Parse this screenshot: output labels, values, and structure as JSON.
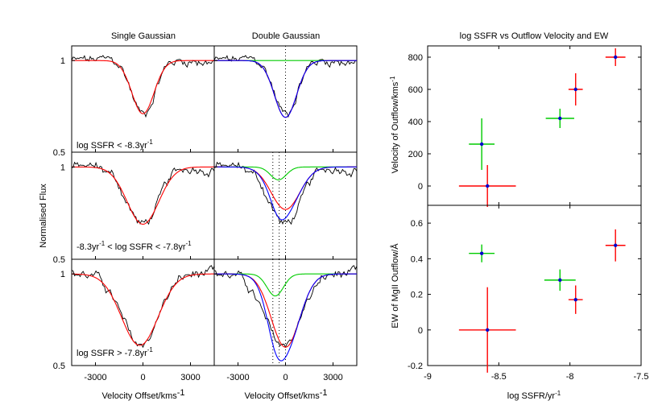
{
  "chart_data": [
    {
      "type": "line",
      "panel": "spectra",
      "column_titles": [
        "Single Gaussian",
        "Double Gaussian"
      ],
      "ylabel": "Normalised Flux",
      "xlabel": {
        "base": "Velocity Offset/kms",
        "sup": "-1"
      },
      "x_ticks": [
        "-3000",
        "0",
        "3000"
      ],
      "xlim": [
        -4500,
        4500
      ],
      "ylim": [
        0.5,
        1.08
      ],
      "y_ticks": [
        "1",
        "0.5"
      ],
      "dotted_lines_x": {
        "row1": [
          0
        ],
        "row2": [
          -800,
          -400,
          0
        ],
        "row3": [
          -800,
          -400,
          0
        ]
      },
      "colors": {
        "data": "#000000",
        "single_fit": "#ff0000",
        "broad": "#ff0000",
        "narrow": "#00cc00",
        "total": "#0000ff"
      },
      "rows": [
        {
          "label": {
            "a": "log SSFR < -8.3yr",
            "sup": "-1",
            "b": ""
          },
          "single_fit": {
            "center": 0,
            "depth": 0.29,
            "sigma": 700
          },
          "double_fit": {
            "narrow": {
              "center": -50,
              "depth": 0.0,
              "sigma": 450
            },
            "broad": {
              "center": 0,
              "depth": 0.31,
              "sigma": 700
            }
          }
        },
        {
          "label": {
            "a": "-8.3yr",
            "sup": "-1",
            "b": " < log SSFR < -7.8yr"
          },
          "label_sup2": "-1",
          "single_fit": {
            "center": 0,
            "depth": 0.31,
            "sigma": 1000
          },
          "double_fit": {
            "narrow": {
              "center": -450,
              "depth": 0.07,
              "sigma": 500
            },
            "broad": {
              "center": 0,
              "depth": 0.23,
              "sigma": 900
            }
          }
        },
        {
          "label": {
            "a": "log SSFR > -7.8yr",
            "sup": "-1",
            "b": ""
          },
          "single_fit": {
            "center": -200,
            "depth": 0.39,
            "sigma": 1150
          },
          "double_fit": {
            "narrow": {
              "center": -650,
              "depth": 0.12,
              "sigma": 520
            },
            "broad": {
              "center": 0,
              "depth": 0.4,
              "sigma": 900
            }
          }
        }
      ]
    },
    {
      "type": "scatter",
      "title": "log SSFR vs Outflow Velocity and EW",
      "xlabel": {
        "base": "log SSFR/yr",
        "sup": "-1"
      },
      "xlim": [
        -9,
        -7.5
      ],
      "x_ticks": [
        -9,
        -8.5,
        -8,
        -7.5
      ],
      "x_tick_labels": [
        "-9",
        "-8.5",
        "-8",
        "-7.5"
      ],
      "top": {
        "ylabel": {
          "base": "Velocity of Outflow/kms",
          "sup": "-1"
        },
        "ylim": [
          -120,
          870
        ],
        "y_ticks": [
          0,
          200,
          400,
          600,
          800
        ],
        "y_tick_labels": [
          "0",
          "200",
          "400",
          "600",
          "800"
        ],
        "series": [
          {
            "color": "#00cc00",
            "points": [
              {
                "x": -8.62,
                "y": 260,
                "xerr": 0.09,
                "yerr": 160
              },
              {
                "x": -8.07,
                "y": 420,
                "xerr": 0.1,
                "yerr": 60
              }
            ]
          },
          {
            "color": "#ff0000",
            "points": [
              {
                "x": -8.58,
                "y": 0,
                "xerr": 0.2,
                "yerr": 130
              },
              {
                "x": -7.96,
                "y": 600,
                "xerr": 0.05,
                "yerr": 100
              },
              {
                "x": -7.68,
                "y": 800,
                "xerr": 0.07,
                "yerr": 55
              }
            ]
          }
        ]
      },
      "bottom": {
        "ylabel": "EW of MgII Outflow/Å",
        "ylim": [
          -0.2,
          0.7
        ],
        "y_ticks": [
          -0.2,
          0,
          0.2,
          0.4,
          0.6
        ],
        "y_tick_labels": [
          "-0.2",
          "0",
          "0.2",
          "0.4",
          "0.6"
        ],
        "series": [
          {
            "color": "#00cc00",
            "points": [
              {
                "x": -8.62,
                "y": 0.43,
                "xerr": 0.09,
                "yerr": 0.05
              },
              {
                "x": -8.07,
                "y": 0.28,
                "xerr": 0.11,
                "yerr": 0.06
              }
            ]
          },
          {
            "color": "#ff0000",
            "points": [
              {
                "x": -8.58,
                "y": 0.0,
                "xerr": 0.2,
                "yerr": 0.24
              },
              {
                "x": -7.96,
                "y": 0.17,
                "xerr": 0.05,
                "yerr": 0.08
              },
              {
                "x": -7.68,
                "y": 0.475,
                "xerr": 0.07,
                "yerr": 0.09
              }
            ]
          }
        ]
      }
    }
  ]
}
